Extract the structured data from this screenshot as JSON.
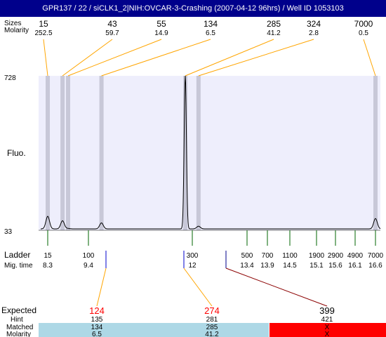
{
  "title": "GPR137 / 22 / siCLK1_2|NIH:OVCAR-3-Crashing (2007-04-12 96hrs) / Well ID 1053103",
  "top_row_labels": {
    "sizes": "Sizes",
    "molarity": "Molarity"
  },
  "left_labels": {
    "fluo": "Fluo.",
    "ladder": "Ladder",
    "mig_time": "Mig. time",
    "expected": "Expected",
    "hint": "Hint",
    "matched": "Matched",
    "molarity": "Molarity"
  },
  "colors": {
    "title_bg": "#00008b",
    "plot_bg": "#eeeefc",
    "band": "#c8c8d8",
    "trace": "#000000",
    "ladder_tick": "#006400",
    "marker_tick": "#0000cd",
    "connector": "#ffa500",
    "expected_red": "#ff0000",
    "matched_bg": "#add8e6",
    "unmatched_bg": "#ff0000"
  },
  "chart_data": {
    "type": "line",
    "ylabel": "Fluo.",
    "ylim": [
      33,
      728
    ],
    "y_ticks": [
      "728",
      "33"
    ],
    "peaks": [
      {
        "size": "15",
        "molarity": "252.5",
        "mig_time": 8.3,
        "height": 90
      },
      {
        "size": "43",
        "molarity": "59.7",
        "mig_time": 8.7,
        "height": 70
      },
      {
        "size": "55",
        "molarity": "14.9",
        "mig_time": 8.85,
        "height": 35
      },
      {
        "size": "134",
        "molarity": "6.5",
        "mig_time": 9.75,
        "height": 60
      },
      {
        "size": "285",
        "molarity": "41.2",
        "mig_time": 12.0,
        "height": 728
      },
      {
        "size": "324",
        "molarity": "2.8",
        "mig_time": 12.3,
        "height": 45
      },
      {
        "size": "7000",
        "molarity": "0.5",
        "mig_time": 16.6,
        "height": 80
      }
    ],
    "ladder": [
      {
        "size": "15",
        "mig_time": "8.3"
      },
      {
        "size": "100",
        "mig_time": "9.4"
      },
      {
        "size": "300",
        "mig_time": "12"
      },
      {
        "size": "500",
        "mig_time": "13.4"
      },
      {
        "size": "700",
        "mig_time": "13.9"
      },
      {
        "size": "1100",
        "mig_time": "14.5"
      },
      {
        "size": "1900",
        "mig_time": "15.1"
      },
      {
        "size": "2900",
        "mig_time": "15.6"
      },
      {
        "size": "4900",
        "mig_time": "16.1"
      },
      {
        "size": "7000",
        "mig_time": "16.6"
      }
    ],
    "expected": [
      {
        "expected": "124",
        "hint": "135",
        "matched": "134",
        "molarity": "6.5",
        "match": true
      },
      {
        "expected": "274",
        "hint": "281",
        "matched": "285",
        "molarity": "41.2",
        "match": true
      },
      {
        "expected": "399",
        "hint": "421",
        "matched": "X",
        "molarity": "X",
        "match": false
      }
    ]
  }
}
